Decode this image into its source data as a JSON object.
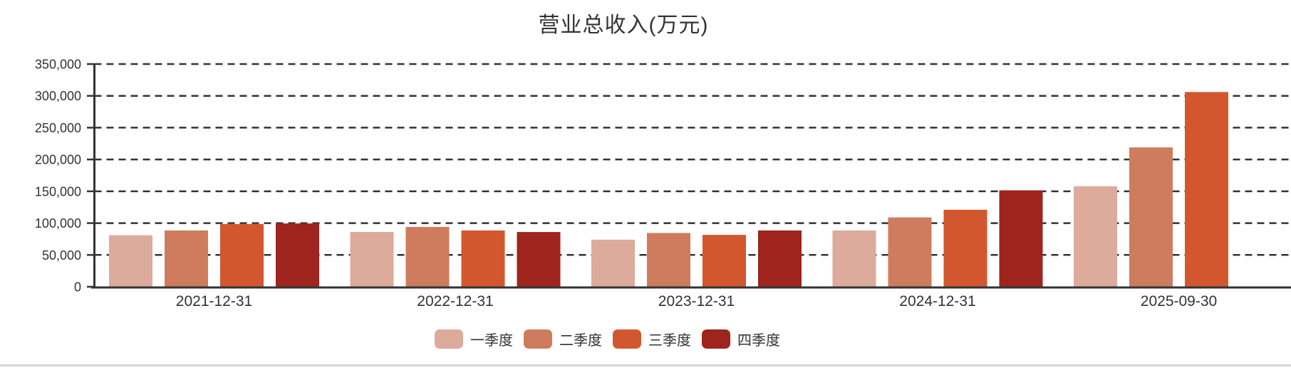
{
  "chart_data": {
    "type": "bar",
    "title": "营业总收入(万元)",
    "categories": [
      "2021-12-31",
      "2022-12-31",
      "2023-12-31",
      "2024-12-31",
      "2025-09-30"
    ],
    "series": [
      {
        "name": "一季度",
        "color": "#dcab9b",
        "values": [
          81000,
          86000,
          74000,
          88500,
          158000
        ]
      },
      {
        "name": "二季度",
        "color": "#cf7c5e",
        "values": [
          88500,
          94000,
          84500,
          109000,
          219000
        ]
      },
      {
        "name": "三季度",
        "color": "#d2572f",
        "values": [
          98500,
          88500,
          81500,
          121000,
          306000
        ]
      },
      {
        "name": "四季度",
        "color": "#9e241d",
        "values": [
          99500,
          86000,
          88500,
          151500,
          null
        ]
      }
    ],
    "ylim": [
      0,
      350000
    ],
    "ytick_step": 50000,
    "ytick_labels": [
      "0",
      "50,000",
      "100,000",
      "150,000",
      "200,000",
      "250,000",
      "300,000",
      "350,000"
    ],
    "grid": "horizontal-dashed",
    "legend_position": "bottom",
    "axis_color": "#333333",
    "grid_color": "#333333",
    "divider_color": "#d6d6d6"
  }
}
